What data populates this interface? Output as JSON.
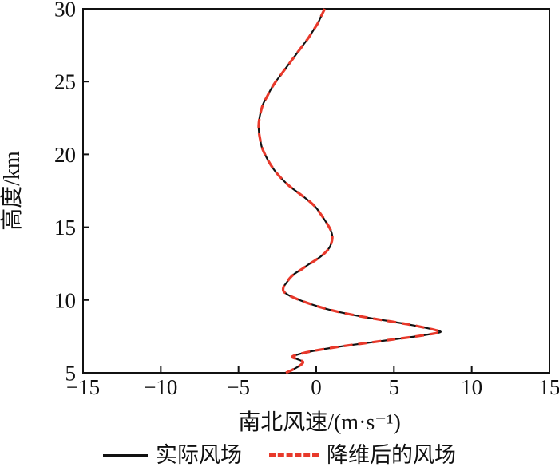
{
  "figure": {
    "background": "#ffffff",
    "axis_color": "#111111"
  },
  "chart_data": {
    "type": "line",
    "title": "",
    "xlabel": "南北风速/(m·s⁻¹)",
    "ylabel": "高度/km",
    "xlim": [
      -15,
      15
    ],
    "ylim": [
      5,
      30
    ],
    "xticks": [
      -15,
      -10,
      -5,
      0,
      5,
      10,
      15
    ],
    "yticks": [
      5,
      10,
      15,
      20,
      25,
      30
    ],
    "xtick_labels": [
      "−15",
      "−10",
      "−5",
      "0",
      "5",
      "10",
      "15"
    ],
    "ytick_labels": [
      "5",
      "10",
      "15",
      "20",
      "25",
      "30"
    ],
    "grid": false,
    "legend_position": "bottom",
    "x_axis_meaning": "north-south wind speed (m/s)",
    "y_axis_meaning": "altitude (km)",
    "altitudes_km": [
      5.0,
      5.25,
      5.5,
      5.75,
      5.95,
      6.1,
      6.3,
      6.5,
      6.7,
      6.9,
      7.1,
      7.3,
      7.5,
      7.7,
      7.8,
      7.9,
      8.1,
      8.35,
      8.6,
      8.85,
      9.1,
      9.35,
      9.6,
      9.85,
      10.1,
      10.35,
      10.6,
      10.9,
      11.2,
      11.5,
      11.8,
      12.1,
      12.4,
      12.7,
      13.0,
      13.3,
      13.6,
      13.9,
      14.2,
      14.5,
      14.8,
      15.1,
      15.4,
      15.7,
      16.0,
      16.3,
      16.6,
      17.0,
      17.4,
      17.8,
      18.2,
      18.6,
      19.0,
      19.5,
      20.0,
      20.5,
      21.0,
      21.5,
      22.0,
      22.5,
      23.0,
      23.5,
      24.0,
      24.5,
      25.0,
      25.5,
      26.0,
      26.5,
      27.0,
      27.5,
      28.0,
      28.5,
      29.0,
      29.5,
      30.0
    ],
    "series": [
      {
        "name": "实际风场",
        "color": "#111111",
        "style": "solid",
        "line_width": 2.2,
        "wind_ms": [
          -1.95,
          -1.45,
          -1.05,
          -0.85,
          -1.25,
          -1.55,
          -1.05,
          -0.2,
          0.9,
          2.2,
          3.6,
          5.0,
          6.4,
          7.6,
          8.0,
          7.8,
          7.0,
          5.8,
          4.4,
          3.0,
          1.8,
          0.8,
          0.0,
          -0.7,
          -1.3,
          -1.8,
          -2.1,
          -2.1,
          -1.9,
          -1.7,
          -1.4,
          -0.95,
          -0.55,
          -0.1,
          0.3,
          0.62,
          0.85,
          0.97,
          1.03,
          1.02,
          0.93,
          0.78,
          0.6,
          0.42,
          0.22,
          0.02,
          -0.25,
          -0.7,
          -1.2,
          -1.7,
          -2.1,
          -2.45,
          -2.75,
          -3.05,
          -3.3,
          -3.5,
          -3.6,
          -3.68,
          -3.7,
          -3.65,
          -3.55,
          -3.4,
          -3.15,
          -2.9,
          -2.6,
          -2.25,
          -1.9,
          -1.55,
          -1.2,
          -0.85,
          -0.5,
          -0.2,
          0.1,
          0.32,
          0.55
        ]
      },
      {
        "name": "降维后的风场",
        "color": "#e8392b",
        "style": "dashed",
        "line_width": 3.2,
        "dash_pattern": [
          11,
          7
        ],
        "wind_ms": [
          -1.95,
          -1.45,
          -1.05,
          -0.85,
          -1.25,
          -1.55,
          -1.05,
          -0.2,
          0.9,
          2.2,
          3.6,
          5.0,
          6.4,
          7.6,
          8.0,
          7.8,
          7.0,
          5.8,
          4.4,
          3.0,
          1.8,
          0.8,
          0.0,
          -0.7,
          -1.3,
          -1.8,
          -2.1,
          -2.1,
          -1.9,
          -1.7,
          -1.4,
          -0.95,
          -0.55,
          -0.1,
          0.3,
          0.62,
          0.85,
          0.97,
          1.03,
          1.02,
          0.93,
          0.78,
          0.6,
          0.42,
          0.22,
          0.02,
          -0.25,
          -0.7,
          -1.2,
          -1.7,
          -2.1,
          -2.45,
          -2.75,
          -3.05,
          -3.3,
          -3.5,
          -3.6,
          -3.68,
          -3.7,
          -3.65,
          -3.55,
          -3.4,
          -3.15,
          -2.9,
          -2.6,
          -2.25,
          -1.9,
          -1.55,
          -1.2,
          -0.85,
          -0.5,
          -0.2,
          0.1,
          0.32,
          0.55
        ]
      }
    ]
  }
}
